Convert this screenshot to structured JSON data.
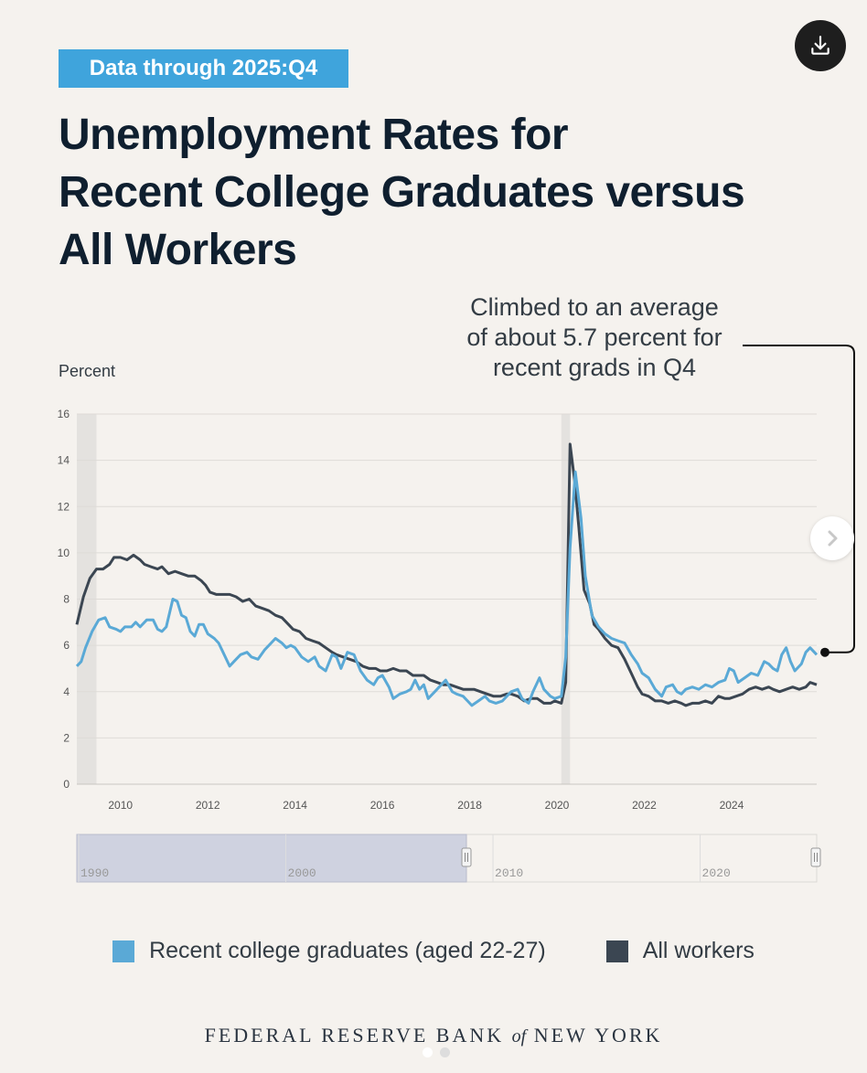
{
  "badge": "Data through 2025:Q4",
  "title": "Unemployment Rates for Recent College Graduates versus All Workers",
  "title_lines": [
    "Unemployment Rates for",
    "Recent College Graduates versus",
    "All Workers"
  ],
  "annotation_lines": [
    "Climbed to an average",
    "of about 5.7 percent for",
    "recent grads in Q4"
  ],
  "download_icon": "download-icon",
  "next_icon": "chevron-right-icon",
  "footer": {
    "pre": "FEDERAL RESERVE BANK ",
    "of": "of",
    "post": " NEW YORK"
  },
  "colors": {
    "grads": "#5aa9d6",
    "all": "#3b4652",
    "badge": "#3fa4dc",
    "background": "#f5f2ee"
  },
  "range_selector": {
    "labels": [
      "1990",
      "2000",
      "2010",
      "2020"
    ],
    "selected": [
      "2009",
      "2025"
    ]
  },
  "chart_data": {
    "type": "line",
    "title": "Unemployment Rates for Recent College Graduates versus All Workers",
    "ylabel": "Percent",
    "xlabel": "",
    "xlim": [
      2009.0,
      2025.95
    ],
    "ylim": [
      0,
      16
    ],
    "yticks": [
      0,
      2,
      4,
      6,
      8,
      10,
      12,
      14,
      16
    ],
    "xticks": [
      2010,
      2012,
      2014,
      2016,
      2018,
      2020,
      2022,
      2024
    ],
    "grid": true,
    "legend_position": "bottom",
    "recessions": [
      [
        2009.0,
        2009.45
      ],
      [
        2020.1,
        2020.3
      ]
    ],
    "series": [
      {
        "name": "Recent college graduates (aged 22-27)",
        "points": [
          [
            2009.0,
            5.1
          ],
          [
            2009.1,
            5.3
          ],
          [
            2009.2,
            5.9
          ],
          [
            2009.35,
            6.6
          ],
          [
            2009.5,
            7.1
          ],
          [
            2009.65,
            7.2
          ],
          [
            2009.75,
            6.8
          ],
          [
            2009.9,
            6.7
          ],
          [
            2010.0,
            6.6
          ],
          [
            2010.1,
            6.8
          ],
          [
            2010.25,
            6.8
          ],
          [
            2010.35,
            7.0
          ],
          [
            2010.45,
            6.8
          ],
          [
            2010.6,
            7.1
          ],
          [
            2010.75,
            7.1
          ],
          [
            2010.85,
            6.7
          ],
          [
            2010.95,
            6.6
          ],
          [
            2011.05,
            6.8
          ],
          [
            2011.2,
            8.0
          ],
          [
            2011.3,
            7.9
          ],
          [
            2011.4,
            7.3
          ],
          [
            2011.5,
            7.2
          ],
          [
            2011.6,
            6.6
          ],
          [
            2011.7,
            6.4
          ],
          [
            2011.8,
            6.9
          ],
          [
            2011.9,
            6.9
          ],
          [
            2012.0,
            6.5
          ],
          [
            2012.15,
            6.3
          ],
          [
            2012.25,
            6.1
          ],
          [
            2012.35,
            5.7
          ],
          [
            2012.5,
            5.1
          ],
          [
            2012.6,
            5.3
          ],
          [
            2012.75,
            5.6
          ],
          [
            2012.9,
            5.7
          ],
          [
            2013.0,
            5.5
          ],
          [
            2013.15,
            5.4
          ],
          [
            2013.3,
            5.8
          ],
          [
            2013.45,
            6.1
          ],
          [
            2013.55,
            6.3
          ],
          [
            2013.7,
            6.1
          ],
          [
            2013.8,
            5.9
          ],
          [
            2013.9,
            6.0
          ],
          [
            2014.0,
            5.9
          ],
          [
            2014.15,
            5.5
          ],
          [
            2014.3,
            5.3
          ],
          [
            2014.45,
            5.5
          ],
          [
            2014.55,
            5.1
          ],
          [
            2014.7,
            4.9
          ],
          [
            2014.85,
            5.6
          ],
          [
            2014.95,
            5.5
          ],
          [
            2015.05,
            5.0
          ],
          [
            2015.2,
            5.7
          ],
          [
            2015.35,
            5.6
          ],
          [
            2015.5,
            4.9
          ],
          [
            2015.65,
            4.5
          ],
          [
            2015.8,
            4.3
          ],
          [
            2015.9,
            4.6
          ],
          [
            2016.0,
            4.7
          ],
          [
            2016.15,
            4.2
          ],
          [
            2016.25,
            3.7
          ],
          [
            2016.4,
            3.9
          ],
          [
            2016.55,
            4.0
          ],
          [
            2016.65,
            4.1
          ],
          [
            2016.75,
            4.5
          ],
          [
            2016.85,
            4.1
          ],
          [
            2016.95,
            4.3
          ],
          [
            2017.05,
            3.7
          ],
          [
            2017.2,
            4.0
          ],
          [
            2017.35,
            4.3
          ],
          [
            2017.45,
            4.5
          ],
          [
            2017.6,
            4.0
          ],
          [
            2017.7,
            3.9
          ],
          [
            2017.85,
            3.8
          ],
          [
            2017.95,
            3.6
          ],
          [
            2018.05,
            3.4
          ],
          [
            2018.2,
            3.6
          ],
          [
            2018.35,
            3.8
          ],
          [
            2018.45,
            3.6
          ],
          [
            2018.6,
            3.5
          ],
          [
            2018.75,
            3.6
          ],
          [
            2018.85,
            3.8
          ],
          [
            2018.95,
            4.0
          ],
          [
            2019.1,
            4.1
          ],
          [
            2019.2,
            3.7
          ],
          [
            2019.35,
            3.5
          ],
          [
            2019.45,
            4.0
          ],
          [
            2019.6,
            4.6
          ],
          [
            2019.7,
            4.1
          ],
          [
            2019.85,
            3.8
          ],
          [
            2019.95,
            3.7
          ],
          [
            2020.1,
            3.8
          ],
          [
            2020.2,
            5.5
          ],
          [
            2020.3,
            10.2
          ],
          [
            2020.42,
            13.5
          ],
          [
            2020.55,
            11.5
          ],
          [
            2020.65,
            9.0
          ],
          [
            2020.8,
            7.3
          ],
          [
            2020.95,
            6.8
          ],
          [
            2021.1,
            6.5
          ],
          [
            2021.25,
            6.3
          ],
          [
            2021.4,
            6.2
          ],
          [
            2021.55,
            6.1
          ],
          [
            2021.7,
            5.6
          ],
          [
            2021.85,
            5.2
          ],
          [
            2021.95,
            4.8
          ],
          [
            2022.1,
            4.6
          ],
          [
            2022.25,
            4.1
          ],
          [
            2022.4,
            3.8
          ],
          [
            2022.5,
            4.2
          ],
          [
            2022.65,
            4.3
          ],
          [
            2022.75,
            4.0
          ],
          [
            2022.85,
            3.9
          ],
          [
            2022.95,
            4.1
          ],
          [
            2023.1,
            4.2
          ],
          [
            2023.25,
            4.1
          ],
          [
            2023.4,
            4.3
          ],
          [
            2023.55,
            4.2
          ],
          [
            2023.7,
            4.4
          ],
          [
            2023.85,
            4.5
          ],
          [
            2023.95,
            5.0
          ],
          [
            2024.05,
            4.9
          ],
          [
            2024.15,
            4.4
          ],
          [
            2024.3,
            4.6
          ],
          [
            2024.45,
            4.8
          ],
          [
            2024.6,
            4.7
          ],
          [
            2024.75,
            5.3
          ],
          [
            2024.85,
            5.2
          ],
          [
            2024.95,
            5.0
          ],
          [
            2025.05,
            4.9
          ],
          [
            2025.15,
            5.6
          ],
          [
            2025.25,
            5.9
          ],
          [
            2025.35,
            5.3
          ],
          [
            2025.45,
            4.9
          ],
          [
            2025.6,
            5.2
          ],
          [
            2025.7,
            5.7
          ],
          [
            2025.8,
            5.9
          ],
          [
            2025.95,
            5.6
          ]
        ]
      },
      {
        "name": "All workers",
        "points": [
          [
            2009.0,
            6.9
          ],
          [
            2009.15,
            8.1
          ],
          [
            2009.3,
            8.9
          ],
          [
            2009.45,
            9.3
          ],
          [
            2009.6,
            9.3
          ],
          [
            2009.75,
            9.5
          ],
          [
            2009.85,
            9.8
          ],
          [
            2010.0,
            9.8
          ],
          [
            2010.15,
            9.7
          ],
          [
            2010.3,
            9.9
          ],
          [
            2010.45,
            9.7
          ],
          [
            2010.55,
            9.5
          ],
          [
            2010.7,
            9.4
          ],
          [
            2010.85,
            9.3
          ],
          [
            2010.95,
            9.4
          ],
          [
            2011.1,
            9.1
          ],
          [
            2011.25,
            9.2
          ],
          [
            2011.4,
            9.1
          ],
          [
            2011.55,
            9.0
          ],
          [
            2011.7,
            9.0
          ],
          [
            2011.85,
            8.8
          ],
          [
            2011.95,
            8.6
          ],
          [
            2012.05,
            8.3
          ],
          [
            2012.2,
            8.2
          ],
          [
            2012.35,
            8.2
          ],
          [
            2012.5,
            8.2
          ],
          [
            2012.65,
            8.1
          ],
          [
            2012.8,
            7.9
          ],
          [
            2012.95,
            8.0
          ],
          [
            2013.1,
            7.7
          ],
          [
            2013.25,
            7.6
          ],
          [
            2013.4,
            7.5
          ],
          [
            2013.55,
            7.3
          ],
          [
            2013.7,
            7.2
          ],
          [
            2013.85,
            6.9
          ],
          [
            2013.95,
            6.7
          ],
          [
            2014.1,
            6.6
          ],
          [
            2014.25,
            6.3
          ],
          [
            2014.4,
            6.2
          ],
          [
            2014.55,
            6.1
          ],
          [
            2014.7,
            5.9
          ],
          [
            2014.85,
            5.7
          ],
          [
            2014.95,
            5.6
          ],
          [
            2015.1,
            5.5
          ],
          [
            2015.25,
            5.4
          ],
          [
            2015.4,
            5.3
          ],
          [
            2015.55,
            5.1
          ],
          [
            2015.7,
            5.0
          ],
          [
            2015.85,
            5.0
          ],
          [
            2015.95,
            4.9
          ],
          [
            2016.1,
            4.9
          ],
          [
            2016.25,
            5.0
          ],
          [
            2016.4,
            4.9
          ],
          [
            2016.55,
            4.9
          ],
          [
            2016.7,
            4.7
          ],
          [
            2016.85,
            4.7
          ],
          [
            2016.95,
            4.7
          ],
          [
            2017.1,
            4.5
          ],
          [
            2017.25,
            4.4
          ],
          [
            2017.4,
            4.3
          ],
          [
            2017.55,
            4.3
          ],
          [
            2017.7,
            4.2
          ],
          [
            2017.85,
            4.1
          ],
          [
            2017.95,
            4.1
          ],
          [
            2018.1,
            4.1
          ],
          [
            2018.25,
            4.0
          ],
          [
            2018.4,
            3.9
          ],
          [
            2018.55,
            3.8
          ],
          [
            2018.7,
            3.8
          ],
          [
            2018.85,
            3.9
          ],
          [
            2018.95,
            3.9
          ],
          [
            2019.1,
            3.8
          ],
          [
            2019.25,
            3.6
          ],
          [
            2019.4,
            3.7
          ],
          [
            2019.55,
            3.7
          ],
          [
            2019.7,
            3.5
          ],
          [
            2019.85,
            3.5
          ],
          [
            2019.95,
            3.6
          ],
          [
            2020.1,
            3.5
          ],
          [
            2020.2,
            4.4
          ],
          [
            2020.3,
            14.7
          ],
          [
            2020.4,
            13.2
          ],
          [
            2020.5,
            11.1
          ],
          [
            2020.62,
            8.4
          ],
          [
            2020.75,
            7.8
          ],
          [
            2020.85,
            6.9
          ],
          [
            2020.95,
            6.7
          ],
          [
            2021.1,
            6.3
          ],
          [
            2021.25,
            6.0
          ],
          [
            2021.4,
            5.9
          ],
          [
            2021.55,
            5.4
          ],
          [
            2021.7,
            4.8
          ],
          [
            2021.85,
            4.2
          ],
          [
            2021.95,
            3.9
          ],
          [
            2022.1,
            3.8
          ],
          [
            2022.25,
            3.6
          ],
          [
            2022.4,
            3.6
          ],
          [
            2022.55,
            3.5
          ],
          [
            2022.7,
            3.6
          ],
          [
            2022.85,
            3.5
          ],
          [
            2022.95,
            3.4
          ],
          [
            2023.1,
            3.5
          ],
          [
            2023.25,
            3.5
          ],
          [
            2023.4,
            3.6
          ],
          [
            2023.55,
            3.5
          ],
          [
            2023.7,
            3.8
          ],
          [
            2023.85,
            3.7
          ],
          [
            2023.95,
            3.7
          ],
          [
            2024.1,
            3.8
          ],
          [
            2024.25,
            3.9
          ],
          [
            2024.4,
            4.1
          ],
          [
            2024.55,
            4.2
          ],
          [
            2024.7,
            4.1
          ],
          [
            2024.85,
            4.2
          ],
          [
            2024.95,
            4.1
          ],
          [
            2025.1,
            4.0
          ],
          [
            2025.25,
            4.1
          ],
          [
            2025.4,
            4.2
          ],
          [
            2025.55,
            4.1
          ],
          [
            2025.7,
            4.2
          ],
          [
            2025.8,
            4.4
          ],
          [
            2025.95,
            4.3
          ]
        ]
      }
    ],
    "annotation": {
      "text": "Climbed to an average of about 5.7 percent for recent grads in Q4",
      "target_series": "Recent college graduates (aged 22-27)",
      "target_x": 2025.95,
      "target_y": 5.7
    }
  }
}
